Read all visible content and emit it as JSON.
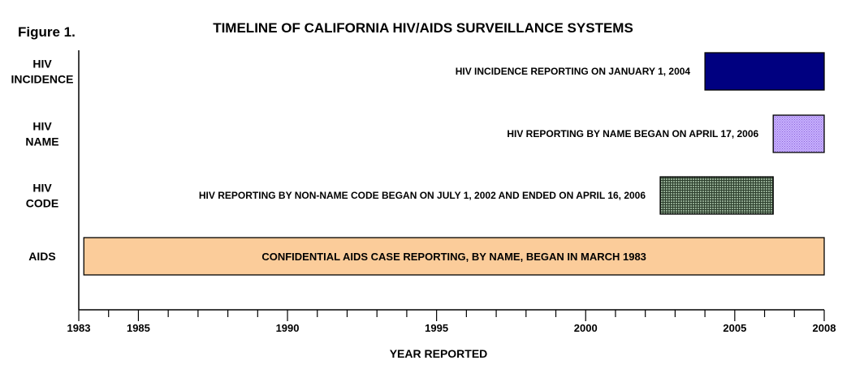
{
  "figure_label": "Figure 1.",
  "chart_data": {
    "type": "bar",
    "orientation": "horizontal-timeline",
    "title": "TIMELINE OF CALIFORNIA HIV/AIDS SURVEILLANCE SYSTEMS",
    "xlabel": "YEAR REPORTED",
    "xlim": [
      1983,
      2008
    ],
    "x_ticks": [
      1983,
      1985,
      1990,
      1995,
      2000,
      2005,
      2008
    ],
    "minor_tick_step": 1,
    "grid": false,
    "categories": [
      "HIV INCIDENCE",
      "HIV NAME",
      "HIV CODE",
      "AIDS"
    ],
    "category_labels": [
      [
        "HIV",
        "INCIDENCE"
      ],
      [
        "HIV",
        "NAME"
      ],
      [
        "HIV",
        "CODE"
      ],
      [
        "AIDS"
      ]
    ],
    "series": [
      {
        "category": "HIV INCIDENCE",
        "start": 2004.0,
        "end": 2008.0,
        "label": "HIV INCIDENCE REPORTING ON JANUARY 1, 2004",
        "label_position": "left",
        "color": "#000080",
        "pattern": "solid"
      },
      {
        "category": "HIV NAME",
        "start": 2006.29,
        "end": 2008.0,
        "label": "HIV REPORTING BY NAME BEGAN ON APRIL 17, 2006",
        "label_position": "left",
        "color": "#b090f0",
        "pattern": "dots"
      },
      {
        "category": "HIV CODE",
        "start": 2002.5,
        "end": 2006.29,
        "label": "HIV REPORTING BY NON-NAME CODE BEGAN ON JULY 1, 2002 AND ENDED ON APRIL 16, 2006",
        "label_position": "left",
        "color": "#506850",
        "pattern": "crosshatch"
      },
      {
        "category": "AIDS",
        "start": 1983.17,
        "end": 2008.0,
        "label": "CONFIDENTIAL AIDS CASE REPORTING, BY NAME, BEGAN IN MARCH 1983",
        "label_position": "inside",
        "color": "#fbcc9a",
        "pattern": "solid"
      }
    ]
  }
}
